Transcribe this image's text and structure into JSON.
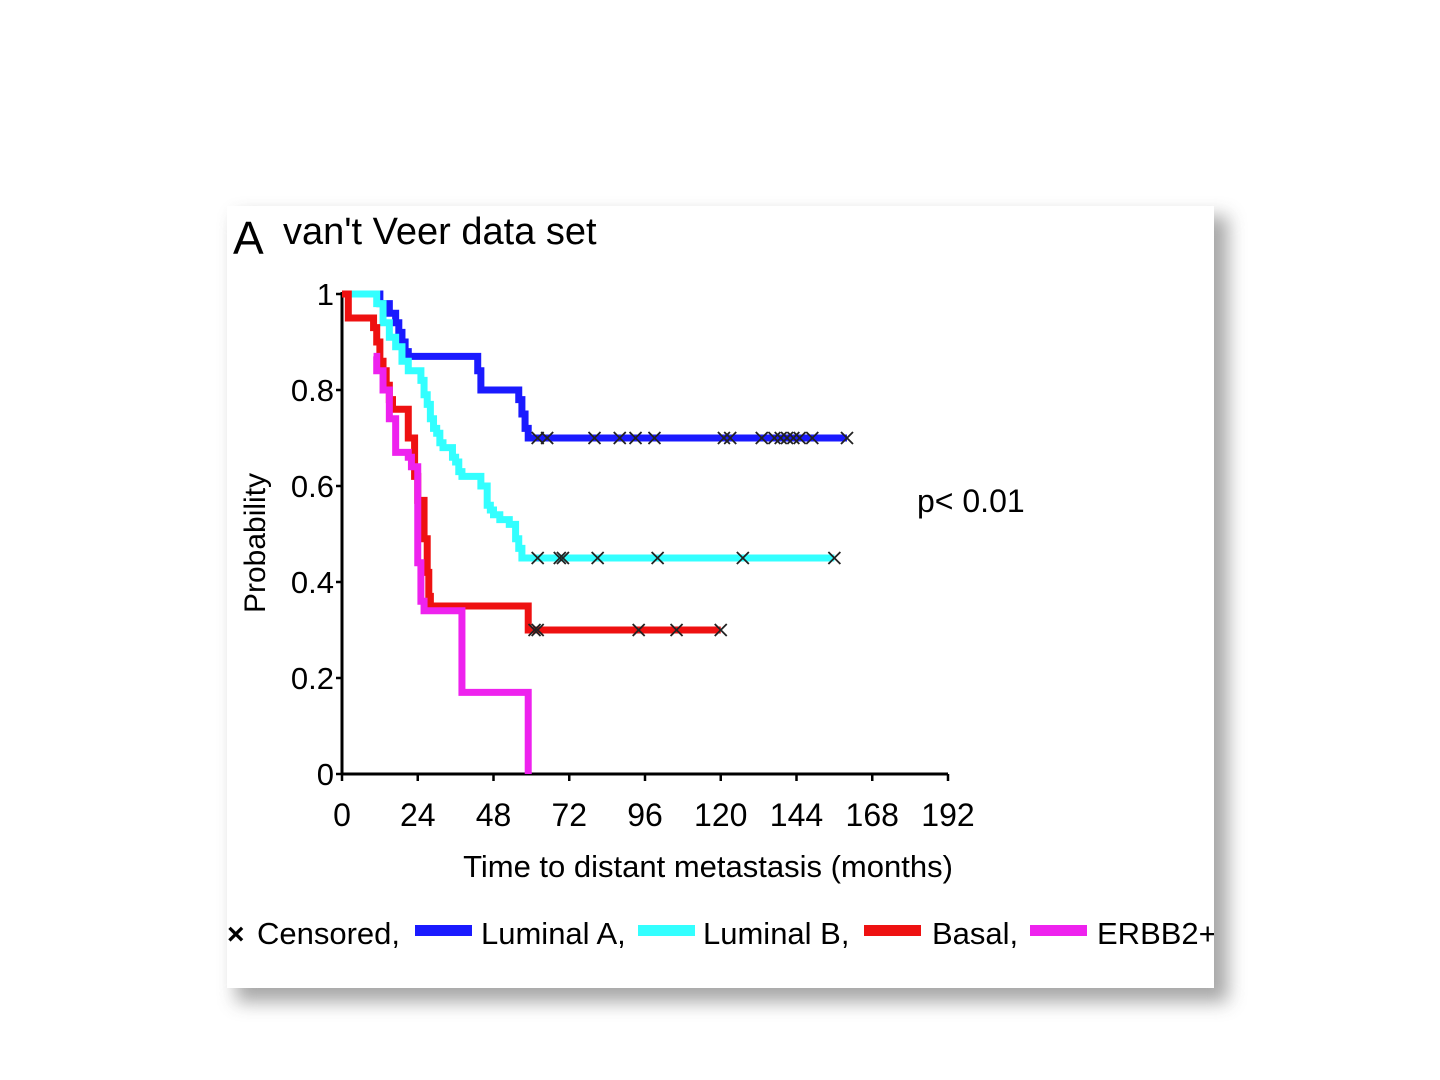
{
  "chart_data": {
    "type": "line",
    "panel_letter": "A",
    "title": "van't Veer data set",
    "xlabel": "Time to distant metastasis (months)",
    "ylabel": "Probability",
    "annotation": "p< 0.01",
    "xlim": [
      0,
      192
    ],
    "ylim": [
      0,
      1
    ],
    "xticks": [
      0,
      24,
      48,
      72,
      96,
      120,
      144,
      168,
      192
    ],
    "yticks": [
      0,
      0.2,
      0.4,
      0.6,
      0.8,
      1
    ],
    "ytick_labels": [
      "0",
      "0.2",
      "0.4",
      "0.6",
      "0.8",
      "1"
    ],
    "grid": false,
    "legend_position": "bottom",
    "legend": {
      "censored_symbol": "×",
      "censored_label": "Censored,",
      "entries": [
        "Luminal A,",
        "Luminal B,",
        "Basal,",
        "ERBB2+"
      ]
    },
    "series": [
      {
        "name": "Luminal A",
        "color": "#1a1aff",
        "steps": [
          [
            0,
            1
          ],
          [
            12,
            0.98
          ],
          [
            15,
            0.96
          ],
          [
            17,
            0.94
          ],
          [
            18,
            0.92
          ],
          [
            19,
            0.9
          ],
          [
            20,
            0.88
          ],
          [
            21,
            0.87
          ],
          [
            41,
            0.87
          ],
          [
            43,
            0.84
          ],
          [
            44,
            0.8
          ],
          [
            55,
            0.8
          ],
          [
            56,
            0.78
          ],
          [
            57,
            0.75
          ],
          [
            58,
            0.72
          ],
          [
            59,
            0.7
          ],
          [
            160,
            0.7
          ]
        ],
        "censored": [
          62,
          65,
          80,
          88,
          93,
          99,
          121,
          123,
          133,
          137,
          139,
          141,
          143,
          145,
          149,
          160
        ]
      },
      {
        "name": "Luminal B",
        "color": "#33ffff",
        "steps": [
          [
            0,
            1
          ],
          [
            11,
            0.98
          ],
          [
            13,
            0.94
          ],
          [
            15,
            0.91
          ],
          [
            17,
            0.89
          ],
          [
            19,
            0.86
          ],
          [
            21,
            0.84
          ],
          [
            25,
            0.82
          ],
          [
            26,
            0.79
          ],
          [
            27,
            0.77
          ],
          [
            28,
            0.74
          ],
          [
            29,
            0.72
          ],
          [
            30,
            0.71
          ],
          [
            31,
            0.69
          ],
          [
            32,
            0.68
          ],
          [
            35,
            0.66
          ],
          [
            36,
            0.65
          ],
          [
            37,
            0.63
          ],
          [
            38,
            0.62
          ],
          [
            44,
            0.6
          ],
          [
            46,
            0.56
          ],
          [
            47,
            0.55
          ],
          [
            48,
            0.54
          ],
          [
            50,
            0.53
          ],
          [
            53,
            0.52
          ],
          [
            55,
            0.49
          ],
          [
            56,
            0.47
          ],
          [
            57,
            0.45
          ],
          [
            156,
            0.45
          ]
        ],
        "censored": [
          62,
          69,
          70,
          81,
          100,
          127,
          156
        ]
      },
      {
        "name": "Basal",
        "color": "#ee1111",
        "steps": [
          [
            0,
            1
          ],
          [
            2,
            0.95
          ],
          [
            10,
            0.93
          ],
          [
            11,
            0.9
          ],
          [
            12,
            0.86
          ],
          [
            13,
            0.84
          ],
          [
            14,
            0.81
          ],
          [
            15,
            0.78
          ],
          [
            16,
            0.76
          ],
          [
            21,
            0.7
          ],
          [
            23,
            0.62
          ],
          [
            24,
            0.57
          ],
          [
            26,
            0.49
          ],
          [
            27,
            0.42
          ],
          [
            27.5,
            0.37
          ],
          [
            28,
            0.35
          ],
          [
            58,
            0.35
          ],
          [
            59,
            0.3
          ],
          [
            120,
            0.3
          ]
        ],
        "censored": [
          61,
          62,
          94,
          106,
          120
        ]
      },
      {
        "name": "ERBB2+",
        "color": "#ee22ee",
        "steps": [
          [
            10,
            0.87
          ],
          [
            11,
            0.84
          ],
          [
            13,
            0.8
          ],
          [
            15,
            0.74
          ],
          [
            17,
            0.67
          ],
          [
            21,
            0.66
          ],
          [
            22,
            0.64
          ],
          [
            24,
            0.44
          ],
          [
            25,
            0.36
          ],
          [
            26,
            0.34
          ],
          [
            37,
            0.34
          ],
          [
            38,
            0.17
          ],
          [
            59,
            0.17
          ],
          [
            59,
            0
          ]
        ],
        "censored": []
      }
    ]
  }
}
